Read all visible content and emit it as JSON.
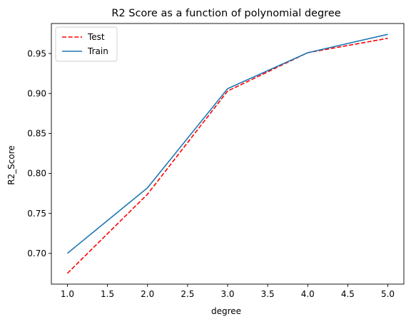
{
  "chart_data": {
    "type": "line",
    "title": "R2 Score as a function of polynomial degree",
    "xlabel": "degree",
    "ylabel": "R2_Score",
    "x": [
      1,
      2,
      3,
      4,
      5
    ],
    "xlim": [
      0.8,
      5.2
    ],
    "ylim": [
      0.6615,
      0.9875
    ],
    "xticks": [
      1.0,
      1.5,
      2.0,
      2.5,
      3.0,
      3.5,
      4.0,
      4.5,
      5.0
    ],
    "yticks": [
      0.7,
      0.75,
      0.8,
      0.85,
      0.9,
      0.95
    ],
    "series": [
      {
        "name": "Test",
        "values": [
          0.675,
          0.774,
          0.903,
          0.951,
          0.969
        ],
        "color": "#ff0000",
        "style": "dashed"
      },
      {
        "name": "Train",
        "values": [
          0.7,
          0.782,
          0.906,
          0.951,
          0.974
        ],
        "color": "#1f77b4",
        "style": "solid"
      }
    ],
    "legend_position": "top-left",
    "grid": false
  }
}
